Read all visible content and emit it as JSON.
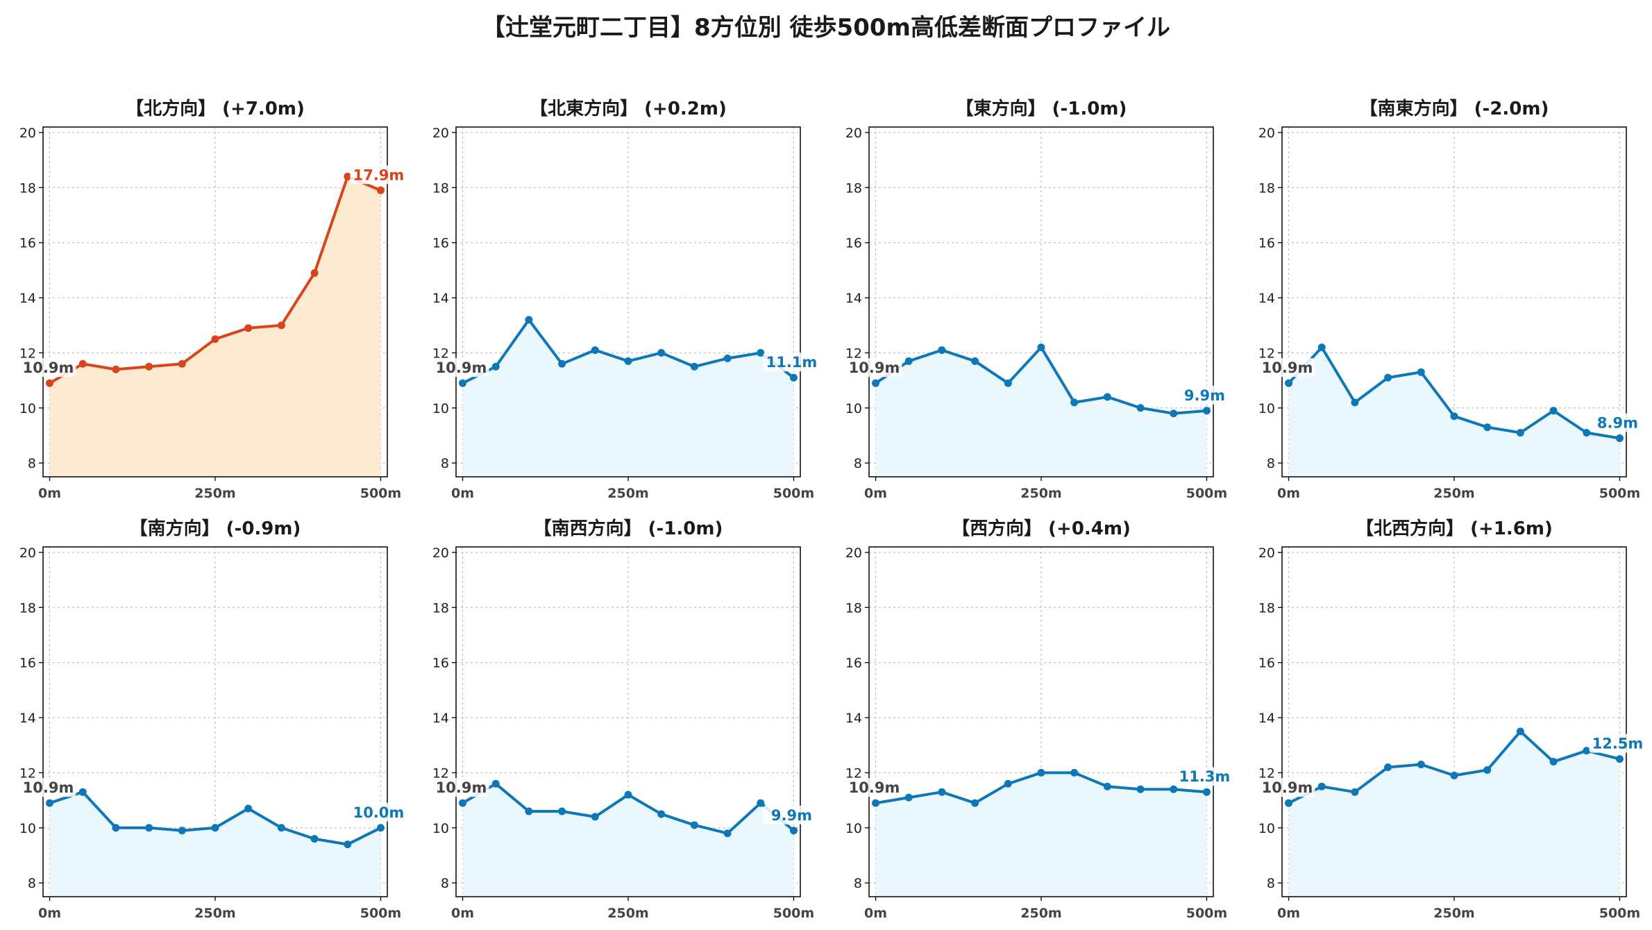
{
  "title": "【辻堂元町二丁目】8方位別 徒歩500m高低差断面プロファイル",
  "colors": {
    "highlight": "#d9451a",
    "highlight_fill": "#fdebd1",
    "normal": "#0d77b8",
    "normal_fill": "#eaf7fc",
    "start_label": "#444444"
  },
  "chart_data": [
    {
      "type": "area",
      "title": "【北方向】 (+7.0m)",
      "highlight": true,
      "x": [
        0,
        50,
        100,
        150,
        200,
        250,
        300,
        350,
        400,
        450,
        500
      ],
      "y": [
        10.9,
        11.6,
        11.4,
        11.5,
        11.6,
        12.5,
        12.9,
        13.0,
        14.9,
        18.4,
        17.9
      ],
      "start_label": "10.9m",
      "end_label": "17.9m",
      "xticks": [
        "0m",
        "250m",
        "500m"
      ],
      "yticks": [
        "8",
        "10",
        "12",
        "14",
        "16",
        "18",
        "20"
      ],
      "ylim": [
        7.5,
        20.2
      ],
      "xlim": [
        -10,
        510
      ],
      "grid": true
    },
    {
      "type": "area",
      "title": "【北東方向】 (+0.2m)",
      "highlight": false,
      "x": [
        0,
        50,
        100,
        150,
        200,
        250,
        300,
        350,
        400,
        450,
        500
      ],
      "y": [
        10.9,
        11.5,
        13.2,
        11.6,
        12.1,
        11.7,
        12.0,
        11.5,
        11.8,
        12.0,
        11.1
      ],
      "start_label": "10.9m",
      "end_label": "11.1m",
      "xticks": [
        "0m",
        "250m",
        "500m"
      ],
      "yticks": [
        "8",
        "10",
        "12",
        "14",
        "16",
        "18",
        "20"
      ],
      "ylim": [
        7.5,
        20.2
      ],
      "xlim": [
        -10,
        510
      ],
      "grid": true
    },
    {
      "type": "area",
      "title": "【東方向】 (-1.0m)",
      "highlight": false,
      "x": [
        0,
        50,
        100,
        150,
        200,
        250,
        300,
        350,
        400,
        450,
        500
      ],
      "y": [
        10.9,
        11.7,
        12.1,
        11.7,
        10.9,
        12.2,
        10.2,
        10.4,
        10.0,
        9.8,
        9.9
      ],
      "start_label": "10.9m",
      "end_label": "9.9m",
      "xticks": [
        "0m",
        "250m",
        "500m"
      ],
      "yticks": [
        "8",
        "10",
        "12",
        "14",
        "16",
        "18",
        "20"
      ],
      "ylim": [
        7.5,
        20.2
      ],
      "xlim": [
        -10,
        510
      ],
      "grid": true
    },
    {
      "type": "area",
      "title": "【南東方向】 (-2.0m)",
      "highlight": false,
      "x": [
        0,
        50,
        100,
        150,
        200,
        250,
        300,
        350,
        400,
        450,
        500
      ],
      "y": [
        10.9,
        12.2,
        10.2,
        11.1,
        11.3,
        9.7,
        9.3,
        9.1,
        9.9,
        9.1,
        8.9
      ],
      "start_label": "10.9m",
      "end_label": "8.9m",
      "xticks": [
        "0m",
        "250m",
        "500m"
      ],
      "yticks": [
        "8",
        "10",
        "12",
        "14",
        "16",
        "18",
        "20"
      ],
      "ylim": [
        7.5,
        20.2
      ],
      "xlim": [
        -10,
        510
      ],
      "grid": true
    },
    {
      "type": "area",
      "title": "【南方向】 (-0.9m)",
      "highlight": false,
      "x": [
        0,
        50,
        100,
        150,
        200,
        250,
        300,
        350,
        400,
        450,
        500
      ],
      "y": [
        10.9,
        11.3,
        10.0,
        10.0,
        9.9,
        10.0,
        10.7,
        10.0,
        9.6,
        9.4,
        10.0
      ],
      "start_label": "10.9m",
      "end_label": "10.0m",
      "xticks": [
        "0m",
        "250m",
        "500m"
      ],
      "yticks": [
        "8",
        "10",
        "12",
        "14",
        "16",
        "18",
        "20"
      ],
      "ylim": [
        7.5,
        20.2
      ],
      "xlim": [
        -10,
        510
      ],
      "grid": true
    },
    {
      "type": "area",
      "title": "【南西方向】 (-1.0m)",
      "highlight": false,
      "x": [
        0,
        50,
        100,
        150,
        200,
        250,
        300,
        350,
        400,
        450,
        500
      ],
      "y": [
        10.9,
        11.6,
        10.6,
        10.6,
        10.4,
        11.2,
        10.5,
        10.1,
        9.8,
        10.9,
        9.9
      ],
      "start_label": "10.9m",
      "end_label": "9.9m",
      "xticks": [
        "0m",
        "250m",
        "500m"
      ],
      "yticks": [
        "8",
        "10",
        "12",
        "14",
        "16",
        "18",
        "20"
      ],
      "ylim": [
        7.5,
        20.2
      ],
      "xlim": [
        -10,
        510
      ],
      "grid": true
    },
    {
      "type": "area",
      "title": "【西方向】 (+0.4m)",
      "highlight": false,
      "x": [
        0,
        50,
        100,
        150,
        200,
        250,
        300,
        350,
        400,
        450,
        500
      ],
      "y": [
        10.9,
        11.1,
        11.3,
        10.9,
        11.6,
        12.0,
        12.0,
        11.5,
        11.4,
        11.4,
        11.3
      ],
      "start_label": "10.9m",
      "end_label": "11.3m",
      "xticks": [
        "0m",
        "250m",
        "500m"
      ],
      "yticks": [
        "8",
        "10",
        "12",
        "14",
        "16",
        "18",
        "20"
      ],
      "ylim": [
        7.5,
        20.2
      ],
      "xlim": [
        -10,
        510
      ],
      "grid": true
    },
    {
      "type": "area",
      "title": "【北西方向】 (+1.6m)",
      "highlight": false,
      "x": [
        0,
        50,
        100,
        150,
        200,
        250,
        300,
        350,
        400,
        450,
        500
      ],
      "y": [
        10.9,
        11.5,
        11.3,
        12.2,
        12.3,
        11.9,
        12.1,
        13.5,
        12.4,
        12.8,
        12.5
      ],
      "start_label": "10.9m",
      "end_label": "12.5m",
      "xticks": [
        "0m",
        "250m",
        "500m"
      ],
      "yticks": [
        "8",
        "10",
        "12",
        "14",
        "16",
        "18",
        "20"
      ],
      "ylim": [
        7.5,
        20.2
      ],
      "xlim": [
        -10,
        510
      ],
      "grid": true
    }
  ]
}
